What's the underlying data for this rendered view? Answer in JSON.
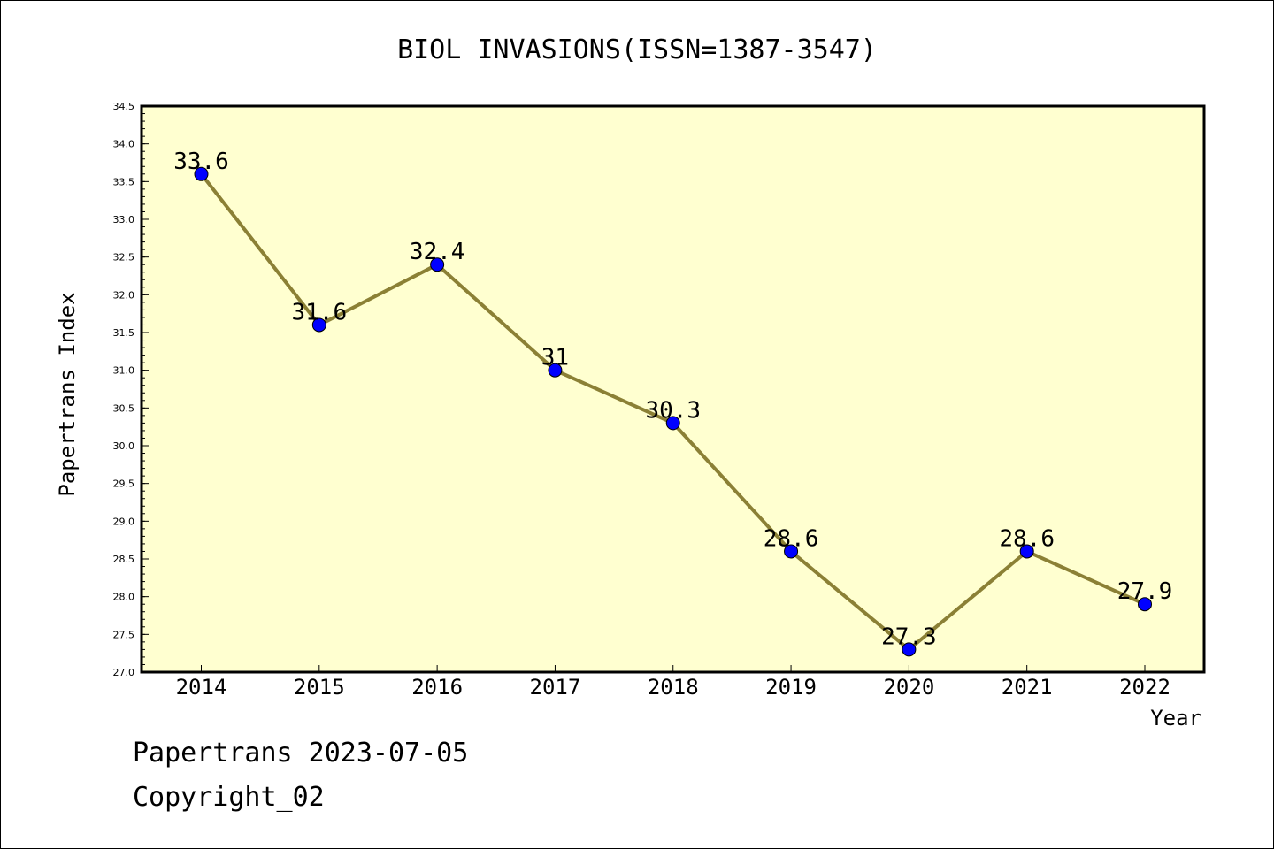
{
  "chart_data": {
    "type": "line",
    "title": "BIOL INVASIONS(ISSN=1387-3547)",
    "xlabel": "Year",
    "ylabel": "Papertrans Index",
    "categories": [
      "2014",
      "2015",
      "2016",
      "2017",
      "2018",
      "2019",
      "2020",
      "2021",
      "2022"
    ],
    "values": [
      33.6,
      31.6,
      32.4,
      31,
      30.3,
      28.6,
      27.3,
      28.6,
      27.9
    ],
    "data_labels": [
      "33.6",
      "31.6",
      "32.4",
      "31",
      "30.3",
      "28.6",
      "27.3",
      "28.6",
      "27.9"
    ],
    "ylim": [
      27.0,
      34.5
    ],
    "yticks": [
      "27.0",
      "27.5",
      "28.0",
      "28.5",
      "29.0",
      "29.5",
      "30.0",
      "30.5",
      "31.0",
      "31.5",
      "32.0",
      "32.5",
      "33.0",
      "33.5",
      "34.0",
      "34.5"
    ],
    "grid": false,
    "colors": {
      "plot_background": "#ffffd0",
      "line": "#8b8035",
      "marker": "#0000ff"
    }
  },
  "footer": {
    "line1": "Papertrans 2023-07-05",
    "line2": "Copyright_02"
  }
}
